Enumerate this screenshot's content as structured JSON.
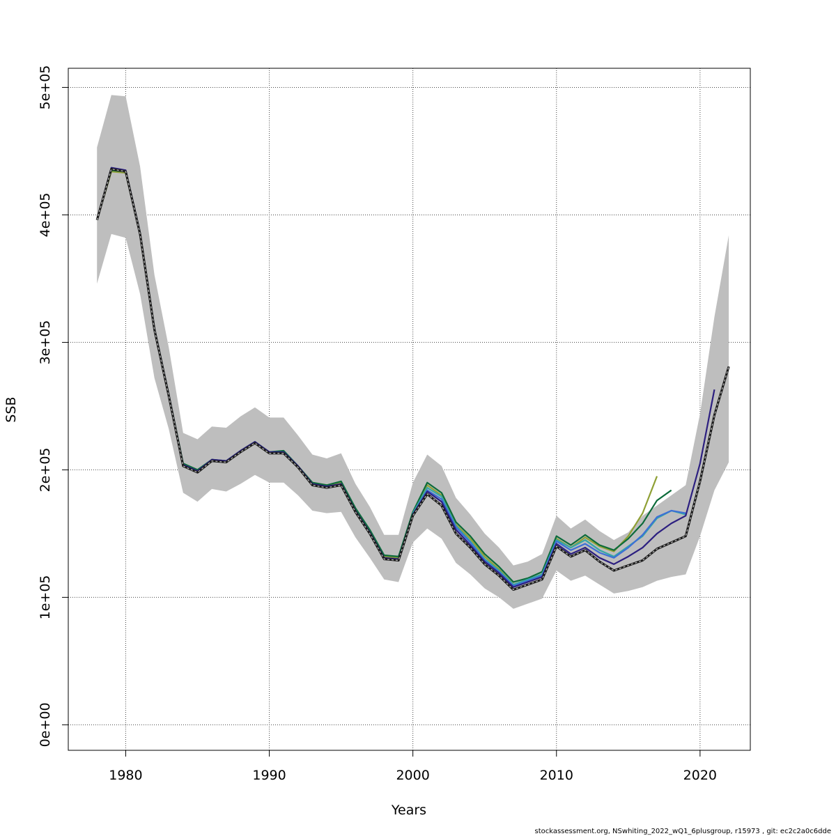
{
  "chart_data": {
    "type": "line",
    "xlabel": "Years",
    "ylabel": "SSB",
    "xlim": [
      1976,
      2023.5
    ],
    "ylim": [
      -20000,
      515000
    ],
    "x_ticks": [
      1980,
      1990,
      2000,
      2010,
      2020
    ],
    "x_tick_labels": [
      "1980",
      "1990",
      "2000",
      "2010",
      "2020"
    ],
    "y_ticks": [
      0,
      100000,
      200000,
      300000,
      400000,
      500000
    ],
    "y_tick_labels": [
      "0e+00",
      "1e+05",
      "2e+05",
      "3e+05",
      "4e+05",
      "5e+05"
    ],
    "grid": true,
    "footer": "stockassessment.org, NSwhiting_2022_wQ1_6plusgroup, r15973 , git: ec2c2a0c6dde",
    "confidence_band": {
      "x": [
        1978,
        1979,
        1980,
        1981,
        1982,
        1983,
        1984,
        1985,
        1986,
        1987,
        1988,
        1989,
        1990,
        1991,
        1992,
        1993,
        1994,
        1995,
        1996,
        1997,
        1998,
        1999,
        2000,
        2001,
        2002,
        2003,
        2004,
        2005,
        2006,
        2007,
        2008,
        2009,
        2010,
        2011,
        2012,
        2013,
        2014,
        2015,
        2016,
        2017,
        2018,
        2019,
        2020,
        2021,
        2022
      ],
      "lower": [
        346000,
        385000,
        382000,
        338000,
        272000,
        232000,
        182000,
        175000,
        185000,
        183000,
        189000,
        196000,
        190000,
        190000,
        180000,
        168000,
        166000,
        167000,
        147000,
        131000,
        114000,
        112000,
        143000,
        154000,
        146000,
        127000,
        118000,
        107000,
        100000,
        91000,
        95000,
        99000,
        121000,
        113000,
        117000,
        110000,
        103000,
        105000,
        108000,
        113000,
        116000,
        118000,
        148000,
        184000,
        206000
      ],
      "upper": [
        453000,
        494000,
        493000,
        438000,
        353000,
        296000,
        229000,
        224000,
        234000,
        233000,
        242000,
        249000,
        241000,
        241000,
        227000,
        212000,
        209000,
        213000,
        189000,
        171000,
        149000,
        149000,
        190000,
        212000,
        203000,
        178000,
        165000,
        150000,
        139000,
        125000,
        128000,
        134000,
        164000,
        154000,
        161000,
        152000,
        145000,
        151000,
        164000,
        172000,
        180000,
        188000,
        244000,
        320000,
        384000
      ]
    },
    "series": [
      {
        "color": "#1a1a1a",
        "dashed": true,
        "x": [
          1978,
          1979,
          1980,
          1981,
          1982,
          1983,
          1984,
          1985,
          1986,
          1987,
          1988,
          1989,
          1990,
          1991,
          1992,
          1993,
          1994,
          1995,
          1996,
          1997,
          1998,
          1999,
          2000,
          2001,
          2002,
          2003,
          2004,
          2005,
          2006,
          2007,
          2008,
          2009,
          2010,
          2011,
          2012,
          2013,
          2014,
          2015,
          2016,
          2017,
          2018,
          2019,
          2020,
          2021,
          2022
        ],
        "values": [
          396000,
          436000,
          434000,
          385000,
          310000,
          258000,
          203000,
          198000,
          207000,
          206000,
          214000,
          221000,
          213000,
          213000,
          202000,
          188000,
          186000,
          188000,
          167000,
          150000,
          130000,
          129000,
          164000,
          181000,
          172000,
          150000,
          139000,
          126000,
          117000,
          106000,
          110000,
          114000,
          140000,
          132000,
          137000,
          128000,
          121000,
          125000,
          129000,
          138000,
          143000,
          148000,
          191000,
          243000,
          281000
        ]
      },
      {
        "color": "#2c1f80",
        "x": [
          1978,
          1979,
          1980,
          1981,
          1982,
          1983,
          1984,
          1985,
          1986,
          1987,
          1988,
          1989,
          1990,
          1991,
          1992,
          1993,
          1994,
          1995,
          1996,
          1997,
          1998,
          1999,
          2000,
          2001,
          2002,
          2003,
          2004,
          2005,
          2006,
          2007,
          2008,
          2009,
          2010,
          2011,
          2012,
          2013,
          2014,
          2015,
          2016,
          2017,
          2018,
          2019,
          2020,
          2021
        ],
        "values": [
          396000,
          437000,
          435000,
          386000,
          311000,
          259000,
          204000,
          199000,
          208000,
          207000,
          215000,
          222000,
          214000,
          214000,
          203000,
          189000,
          187000,
          189000,
          168000,
          151000,
          131000,
          130000,
          165000,
          183000,
          175000,
          153000,
          141000,
          128000,
          119000,
          108000,
          112000,
          116000,
          142000,
          134000,
          139000,
          131000,
          126000,
          132000,
          139000,
          150000,
          158000,
          164000,
          205000,
          263000
        ]
      },
      {
        "color": "#3d6fd6",
        "x": [
          2000,
          2001,
          2002,
          2003,
          2004,
          2005,
          2006,
          2007,
          2008,
          2009,
          2010,
          2011,
          2012,
          2013,
          2014,
          2015,
          2016,
          2017,
          2018,
          2019
        ],
        "values": [
          165000,
          184000,
          177000,
          155000,
          143000,
          129000,
          120000,
          109000,
          113000,
          117000,
          144000,
          137000,
          142000,
          135000,
          131000,
          139000,
          149000,
          163000,
          168000,
          166000
        ]
      },
      {
        "color": "#34a6a6",
        "x": [
          2000,
          2001,
          2002,
          2003,
          2004,
          2005,
          2006,
          2007,
          2008,
          2009,
          2010,
          2011,
          2012,
          2013,
          2014,
          2015,
          2016,
          2017,
          2018,
          2019
        ],
        "values": [
          166000,
          186000,
          179000,
          156000,
          144000,
          130000,
          121000,
          110000,
          114000,
          118000,
          145000,
          139000,
          145000,
          137000,
          132000,
          140000,
          148000,
          162000,
          168000,
          165000
        ]
      },
      {
        "color": "#0c6b3a",
        "x": [
          1978,
          1979,
          1980,
          1981,
          1982,
          1983,
          1984,
          1985,
          1986,
          1987,
          1988,
          1989,
          1990,
          1991,
          1992,
          1993,
          1994,
          1995,
          1996,
          1997,
          1998,
          1999,
          2000,
          2001,
          2002,
          2003,
          2004,
          2005,
          2006,
          2007,
          2008,
          2009,
          2010,
          2011,
          2012,
          2013,
          2014,
          2015,
          2016,
          2017,
          2018
        ],
        "values": [
          396000,
          435000,
          434000,
          386000,
          311000,
          259000,
          205000,
          200000,
          208000,
          207000,
          215000,
          222000,
          214000,
          215000,
          203000,
          190000,
          188000,
          191000,
          170000,
          153000,
          133000,
          132000,
          167000,
          190000,
          182000,
          159000,
          148000,
          134000,
          124000,
          112000,
          115000,
          120000,
          148000,
          141000,
          149000,
          141000,
          137000,
          146000,
          158000,
          176000,
          184000
        ]
      },
      {
        "color": "#8fa035",
        "x": [
          1978,
          1979,
          1980,
          1981,
          1982,
          1983,
          1984,
          1985,
          1986,
          1987,
          1988,
          1989,
          1990,
          1991,
          1992,
          1993,
          1994,
          1995,
          1996,
          1997,
          1998,
          1999,
          2000,
          2001,
          2002,
          2003,
          2004,
          2005,
          2006,
          2007,
          2008,
          2009,
          2010,
          2011,
          2012,
          2013,
          2014,
          2015,
          2016,
          2017
        ],
        "values": [
          396000,
          434000,
          433000,
          385000,
          310000,
          258000,
          204000,
          199000,
          207000,
          206000,
          214000,
          221000,
          214000,
          214000,
          203000,
          190000,
          188000,
          190000,
          169000,
          152000,
          132000,
          131000,
          166000,
          188000,
          180000,
          157000,
          146000,
          132000,
          122000,
          110000,
          114000,
          118000,
          146000,
          139000,
          147000,
          140000,
          136000,
          148000,
          166000,
          195000
        ]
      }
    ]
  }
}
